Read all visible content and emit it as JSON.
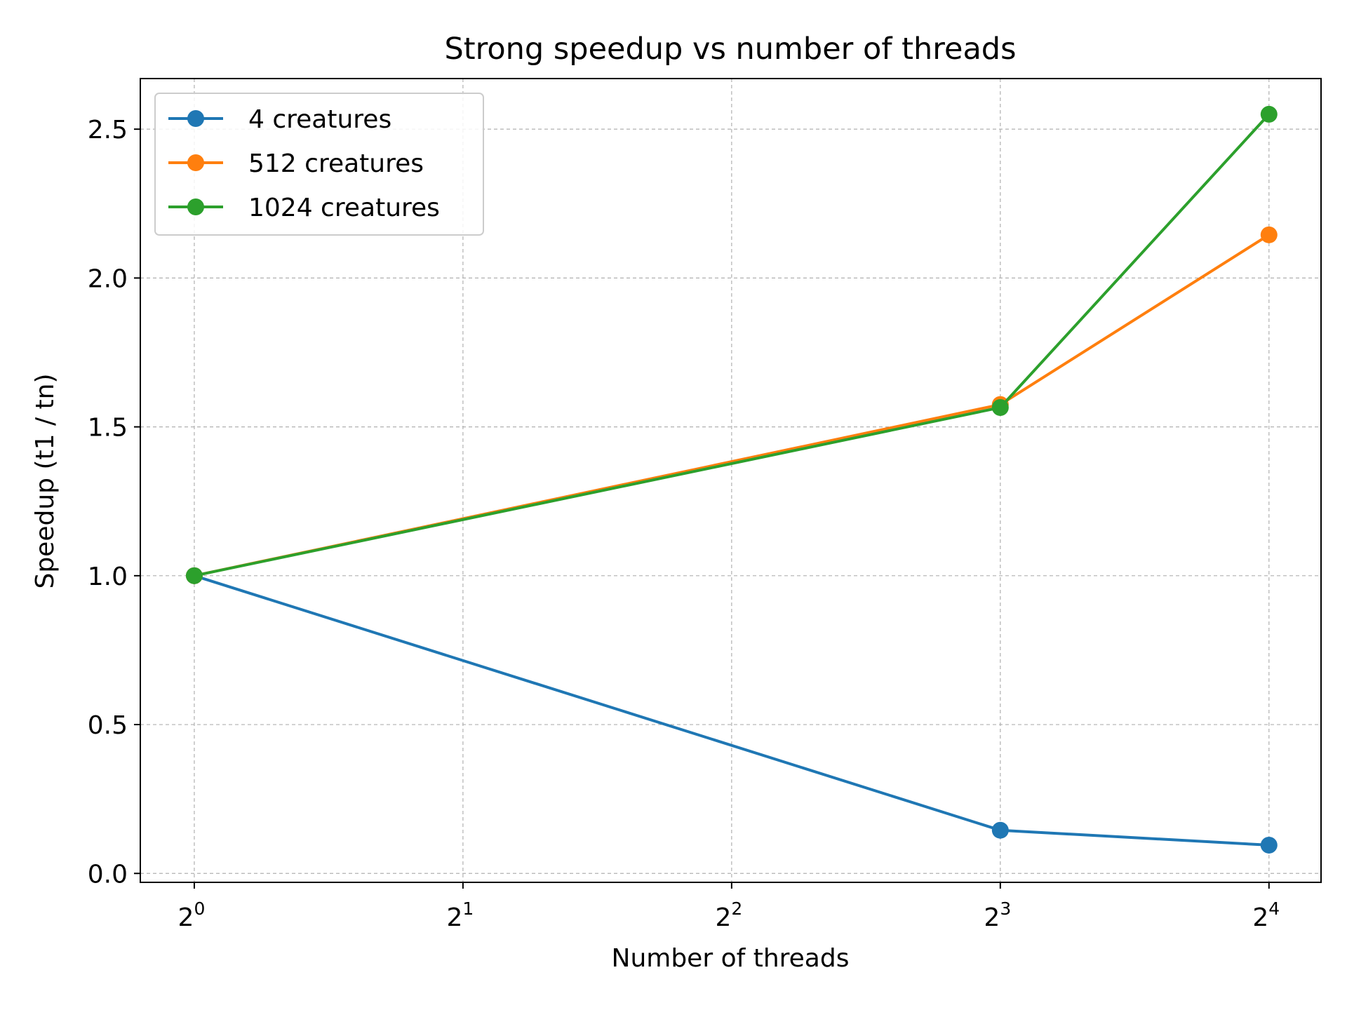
{
  "chart_data": {
    "type": "line",
    "title": "Strong speedup vs number of threads",
    "xlabel": "Number of threads",
    "ylabel": "Speedup (t1 / tn)",
    "x_scale": "log2",
    "x": [
      1,
      8,
      16
    ],
    "xlim": [
      0.87,
      18.3
    ],
    "ylim": [
      -0.03,
      2.67
    ],
    "x_ticks": [
      {
        "value": 1,
        "base": "2",
        "exp": "0"
      },
      {
        "value": 2,
        "base": "2",
        "exp": "1"
      },
      {
        "value": 4,
        "base": "2",
        "exp": "2"
      },
      {
        "value": 8,
        "base": "2",
        "exp": "3"
      },
      {
        "value": 16,
        "base": "2",
        "exp": "4"
      }
    ],
    "y_ticks": [
      {
        "value": 0.0,
        "label": "0.0"
      },
      {
        "value": 0.5,
        "label": "0.5"
      },
      {
        "value": 1.0,
        "label": "1.0"
      },
      {
        "value": 1.5,
        "label": "1.5"
      },
      {
        "value": 2.0,
        "label": "2.0"
      },
      {
        "value": 2.5,
        "label": "2.5"
      }
    ],
    "grid": true,
    "legend_position": "top-left",
    "series": [
      {
        "name": "4 creatures",
        "color": "#1f77b4",
        "values": [
          1.0,
          0.145,
          0.095
        ]
      },
      {
        "name": "512 creatures",
        "color": "#ff7f0e",
        "values": [
          1.0,
          1.575,
          2.145
        ]
      },
      {
        "name": "1024 creatures",
        "color": "#2ca02c",
        "values": [
          1.0,
          1.565,
          2.55
        ]
      }
    ]
  }
}
